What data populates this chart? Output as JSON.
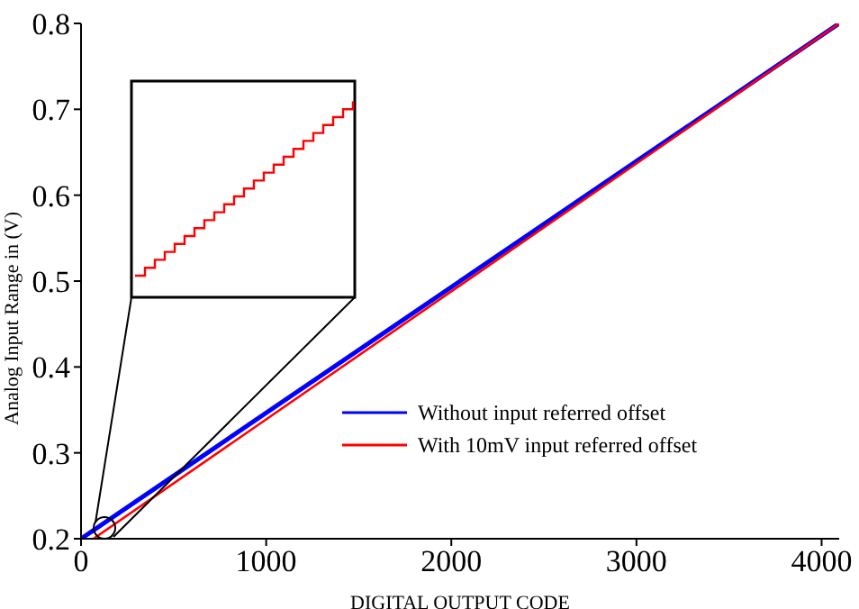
{
  "chart_data": {
    "type": "line",
    "xlabel": "DIGITAL OUTPUT CODE",
    "ylabel": "Analog Input Range in (V)",
    "series": [
      {
        "name": "Without input referred offset",
        "color": "#0000ff",
        "x": [
          0,
          4095
        ],
        "values": [
          0.2,
          0.8
        ]
      },
      {
        "name": "With 10mV input referred offset",
        "color": "#ff0000",
        "x": [
          67,
          4095
        ],
        "values": [
          0.2,
          0.8
        ]
      }
    ],
    "xlim": [
      0,
      4095
    ],
    "xticks": [
      0,
      1000,
      2000,
      3000,
      4000
    ],
    "ylim": [
      0.2,
      0.8
    ],
    "yticks": [
      0.2,
      0.3,
      0.4,
      0.5,
      0.6,
      0.7,
      0.8
    ],
    "grid": false,
    "legend": "bottom right",
    "marker": "none",
    "line_style": "solid"
  }
}
